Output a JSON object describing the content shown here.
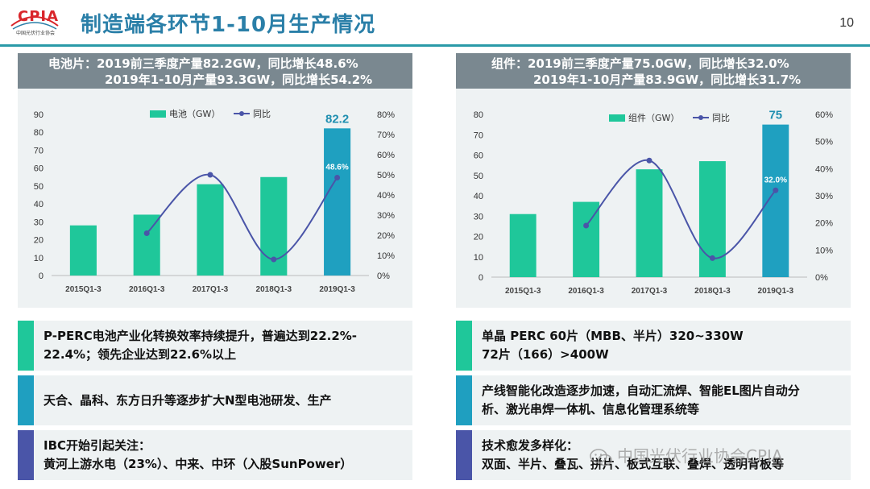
{
  "header": {
    "logo_text": "CPIA",
    "logo_sub": "中国光伏行业协会",
    "title": "制造端各环节1-10月生产情况",
    "page_number": "10"
  },
  "left_panel": {
    "head_line1": "电池片：2019前三季度产量82.2GW，同比增长48.6%",
    "head_line2": "2019年1-10月产量93.3GW，同比增长54.2%"
  },
  "right_panel": {
    "head_line1": "组件：2019前三季度产量75.0GW，同比增长32.0%",
    "head_line2": "2019年1-10月产量83.9GW，同比增长31.7%"
  },
  "chart_data": [
    {
      "type": "bar",
      "categories": [
        "2015Q1-3",
        "2016Q1-3",
        "2017Q1-3",
        "2018Q1-3",
        "2019Q1-3"
      ],
      "series": [
        {
          "name": "电池（GW）",
          "type": "bar",
          "axis": "left",
          "values": [
            28,
            34,
            51,
            55,
            82.2
          ],
          "colors": [
            "#1fc79a",
            "#1fc79a",
            "#1fc79a",
            "#1fc79a",
            "#1fa0c0"
          ]
        },
        {
          "name": "同比",
          "type": "line",
          "axis": "right",
          "values": [
            null,
            21,
            50,
            8,
            48.6
          ],
          "color": "#4a55a8"
        }
      ],
      "data_labels": {
        "bar_last": "82.2",
        "line_last": "48.6%"
      },
      "ylim": [
        0,
        90
      ],
      "yticks": [
        0,
        10,
        20,
        30,
        40,
        50,
        60,
        70,
        80,
        90
      ],
      "y2lim": [
        0,
        80
      ],
      "y2ticks": [
        "0%",
        "10%",
        "20%",
        "30%",
        "40%",
        "50%",
        "60%",
        "70%",
        "80%"
      ],
      "legend_position": "top-center"
    },
    {
      "type": "bar",
      "categories": [
        "2015Q1-3",
        "2016Q1-3",
        "2017Q1-3",
        "2018Q1-3",
        "2019Q1-3"
      ],
      "series": [
        {
          "name": "组件（GW）",
          "type": "bar",
          "axis": "left",
          "values": [
            31,
            37,
            53,
            57,
            75
          ],
          "colors": [
            "#1fc79a",
            "#1fc79a",
            "#1fc79a",
            "#1fc79a",
            "#1fa0c0"
          ]
        },
        {
          "name": "同比",
          "type": "line",
          "axis": "right",
          "values": [
            null,
            19,
            43,
            7,
            32
          ],
          "color": "#4a55a8"
        }
      ],
      "data_labels": {
        "bar_last": "75",
        "line_last": "32.0%"
      },
      "ylim": [
        0,
        80
      ],
      "yticks": [
        0,
        10,
        20,
        30,
        40,
        50,
        60,
        70,
        80
      ],
      "y2lim": [
        0,
        60
      ],
      "y2ticks": [
        "0%",
        "10%",
        "20%",
        "30%",
        "40%",
        "50%",
        "60%"
      ],
      "legend_position": "top-center"
    }
  ],
  "bullets_left": [
    {
      "line1": "P-PERC电池产业化转换效率持续提升，普遍达到22.2%-",
      "line2": "22.4%；领先企业达到22.6%以上",
      "color": "#1fc79a"
    },
    {
      "line1": "天合、晶科、东方日升等逐步扩大N型电池研发、生产",
      "line2": "",
      "color": "#1f9fc0"
    },
    {
      "line1": "IBC开始引起关注：",
      "line2": "黄河上游水电（23%）、中来、中环（入股SunPower）",
      "color": "#4a55a8"
    }
  ],
  "bullets_right": [
    {
      "line1": "单晶 PERC 60片（MBB、半片）320~330W",
      "line2": "72片（166）>400W",
      "color": "#1fc79a"
    },
    {
      "line1": "产线智能化改造逐步加速，自动汇流焊、智能EL图片自动分",
      "line2": "析、激光串焊一体机、信息化管理系统等",
      "color": "#1f9fc0"
    },
    {
      "line1": "技术愈发多样化：",
      "line2": "双面、半片、叠瓦、拼片、板式互联、叠焊、透明背板等",
      "color": "#4a55a8"
    }
  ],
  "watermark": "中国光伏行业协会CPIA"
}
